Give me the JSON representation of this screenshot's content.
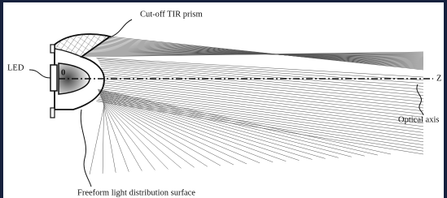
{
  "labels": {
    "prism": "Cut-off TIR prism",
    "led": "LED",
    "origin": "0",
    "z": "Z",
    "axis": "Optical axis",
    "surface": "Freeform light distribution surface"
  }
}
